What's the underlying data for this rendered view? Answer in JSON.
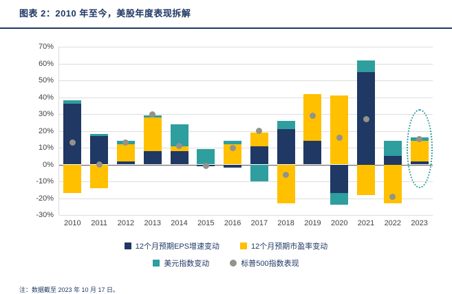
{
  "header": {
    "title": "图表 2：2010 年至今，美股年度表现拆解"
  },
  "footnote": "注：数据截至 2023 年 10 月 17 日。",
  "colors": {
    "eps": "#1F3864",
    "pe": "#FFC000",
    "usd": "#2E9E9E",
    "spx": "#93928B",
    "highlight": "#2E9E9E",
    "title": "#1F3864",
    "gridline": "#DDDDDD",
    "zero_axis": "#595959"
  },
  "chart_data": {
    "type": "bar",
    "stacked": true,
    "title": "2010 年至今，美股年度表现拆解",
    "xlabel": "",
    "ylabel": "",
    "ylim": [
      -30,
      70
    ],
    "ytick_step": 10,
    "ytick_labels": [
      "70%",
      "60%",
      "50%",
      "40%",
      "30%",
      "20%",
      "10%",
      "0%",
      "-10%",
      "-20%",
      "-30%"
    ],
    "grid": true,
    "legend_position": "bottom",
    "categories": [
      "2010",
      "2011",
      "2012",
      "2013",
      "2014",
      "2015",
      "2016",
      "2017",
      "2018",
      "2019",
      "2020",
      "2021",
      "2022",
      "2023"
    ],
    "series": [
      {
        "name": "12个月预期EPS增速变动",
        "color_key": "eps",
        "values": [
          36,
          17,
          2,
          8,
          8,
          -1,
          -2,
          11,
          21,
          14,
          -17,
          55,
          5,
          2
        ]
      },
      {
        "name": "12个月预期市盈率变动",
        "color_key": "pe",
        "values": [
          -17,
          -14,
          10,
          20,
          3,
          0,
          12,
          8,
          -23,
          28,
          41,
          -18,
          -23,
          12
        ]
      },
      {
        "name": "美元指数变动",
        "color_key": "usd",
        "values": [
          2,
          1,
          2,
          1,
          13,
          9,
          2,
          -10,
          5,
          0,
          -7,
          7,
          9,
          2
        ]
      }
    ],
    "dot_series": {
      "name": "标普500指数表现",
      "values": [
        13,
        0,
        13,
        30,
        11,
        -1,
        10,
        20,
        -6,
        29,
        16,
        27,
        -19,
        15
      ]
    },
    "highlight": {
      "year": "2023",
      "y_top": 33,
      "y_bottom": -14
    }
  }
}
